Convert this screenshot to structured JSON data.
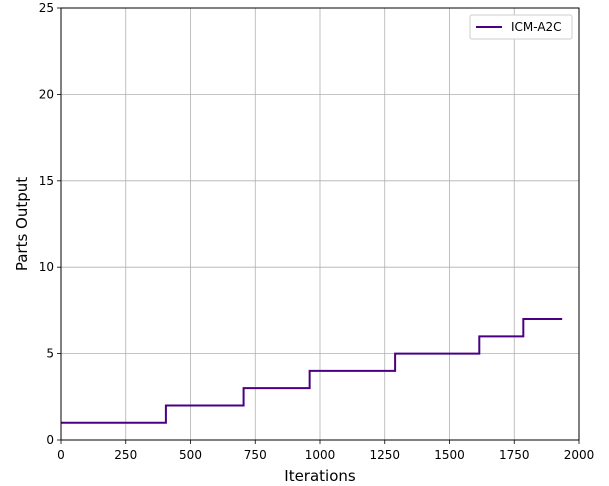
{
  "chart_data": {
    "type": "line",
    "step": true,
    "xlabel": "Iterations",
    "ylabel": "Parts Output",
    "xlim": [
      0,
      2000
    ],
    "ylim": [
      0,
      25
    ],
    "xticks": [
      0,
      250,
      500,
      750,
      1000,
      1250,
      1500,
      1750,
      2000
    ],
    "yticks": [
      0,
      5,
      10,
      15,
      20,
      25
    ],
    "grid": true,
    "legend_position": "top-right",
    "series": [
      {
        "name": "ICM-A2C",
        "color": "#4b0082",
        "x": [
          0,
          405,
          405,
          705,
          705,
          960,
          960,
          1290,
          1290,
          1615,
          1615,
          1785,
          1785,
          1935
        ],
        "y": [
          1,
          1,
          2,
          2,
          3,
          3,
          4,
          4,
          5,
          5,
          6,
          6,
          7,
          7
        ]
      }
    ]
  }
}
